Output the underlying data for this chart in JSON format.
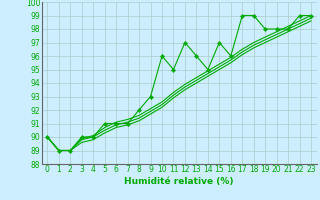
{
  "x": [
    0,
    1,
    2,
    3,
    4,
    5,
    6,
    7,
    8,
    9,
    10,
    11,
    12,
    13,
    14,
    15,
    16,
    17,
    18,
    19,
    20,
    21,
    22,
    23
  ],
  "line_zigzag": [
    90,
    89,
    89,
    90,
    90,
    91,
    91,
    91,
    92,
    93,
    96,
    95,
    97,
    96,
    95,
    97,
    96,
    99,
    99,
    98,
    98,
    98,
    99,
    99
  ],
  "line_smooth1": [
    90,
    89,
    89,
    89.9,
    90.1,
    90.7,
    91.1,
    91.3,
    91.6,
    92.1,
    92.6,
    93.3,
    93.9,
    94.4,
    94.9,
    95.4,
    95.9,
    96.5,
    97.0,
    97.4,
    97.8,
    98.2,
    98.6,
    99.0
  ],
  "line_smooth2": [
    90,
    89,
    89,
    89.8,
    90.0,
    90.5,
    90.9,
    91.1,
    91.4,
    91.9,
    92.4,
    93.1,
    93.7,
    94.2,
    94.7,
    95.2,
    95.7,
    96.3,
    96.8,
    97.2,
    97.6,
    98.0,
    98.4,
    98.8
  ],
  "line_smooth3": [
    90,
    89,
    89,
    89.6,
    89.8,
    90.3,
    90.7,
    90.9,
    91.2,
    91.7,
    92.2,
    92.9,
    93.5,
    94.0,
    94.5,
    95.0,
    95.5,
    96.1,
    96.6,
    97.0,
    97.4,
    97.8,
    98.2,
    98.6
  ],
  "line_color": "#00aa00",
  "bg_color": "#cceeff",
  "grid_color": "#aacccc",
  "xlabel": "Humidité relative (%)",
  "ylim": [
    88,
    100
  ],
  "xlim": [
    -0.5,
    23.5
  ],
  "yticks": [
    88,
    89,
    90,
    91,
    92,
    93,
    94,
    95,
    96,
    97,
    98,
    99,
    100
  ],
  "xticks": [
    0,
    1,
    2,
    3,
    4,
    5,
    6,
    7,
    8,
    9,
    10,
    11,
    12,
    13,
    14,
    15,
    16,
    17,
    18,
    19,
    20,
    21,
    22,
    23
  ],
  "tick_fontsize": 5.5,
  "xlabel_fontsize": 6.5
}
